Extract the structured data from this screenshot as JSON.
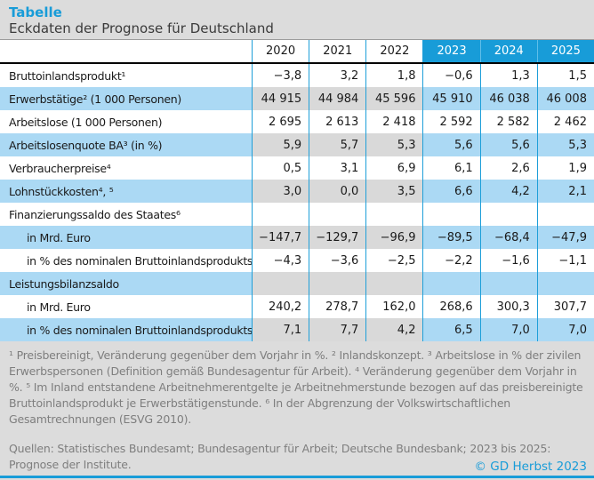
{
  "header": {
    "title": "Tabelle",
    "subtitle": "Eckdaten der Prognose für Deutschland"
  },
  "chart_data": {
    "type": "table",
    "title": "Eckdaten der Prognose für Deutschland",
    "columns": [
      "2020",
      "2021",
      "2022",
      "2023",
      "2024",
      "2025"
    ],
    "forecast_columns": [
      "2023",
      "2024",
      "2025"
    ],
    "rows": [
      {
        "label": "Bruttoinlandsprodukt¹",
        "values": [
          "−3,8",
          "3,2",
          "1,8",
          "−0,6",
          "1,3",
          "1,5"
        ]
      },
      {
        "label": "Erwerbstätige² (1 000 Personen)",
        "values": [
          "44 915",
          "44 984",
          "45 596",
          "45 910",
          "46 038",
          "46 008"
        ]
      },
      {
        "label": "Arbeitslose (1 000 Personen)",
        "values": [
          "2 695",
          "2 613",
          "2 418",
          "2 592",
          "2 582",
          "2 462"
        ]
      },
      {
        "label": "Arbeitslosenquote BA³ (in %)",
        "values": [
          "5,9",
          "5,7",
          "5,3",
          "5,6",
          "5,6",
          "5,3"
        ]
      },
      {
        "label": "Verbraucherpreise⁴",
        "values": [
          "0,5",
          "3,1",
          "6,9",
          "6,1",
          "2,6",
          "1,9"
        ]
      },
      {
        "label": "Lohnstückkosten⁴, ⁵",
        "values": [
          "3,0",
          "0,0",
          "3,5",
          "6,6",
          "4,2",
          "2,1"
        ]
      },
      {
        "label": "Finanzierungssaldo des Staates⁶",
        "values": [
          "",
          "",
          "",
          "",
          "",
          ""
        ]
      },
      {
        "label": "in Mrd. Euro",
        "values": [
          "−147,7",
          "−129,7",
          "−96,9",
          "−89,5",
          "−68,4",
          "−47,9"
        ]
      },
      {
        "label": "in % des nominalen Bruttoinlandsprodukts",
        "values": [
          "−4,3",
          "−3,6",
          "−2,5",
          "−2,2",
          "−1,6",
          "−1,1"
        ]
      },
      {
        "label": "Leistungsbilanzsaldo",
        "values": [
          "",
          "",
          "",
          "",
          "",
          ""
        ]
      },
      {
        "label": "in Mrd. Euro",
        "values": [
          "240,2",
          "278,7",
          "162,0",
          "268,6",
          "300,3",
          "307,7"
        ]
      },
      {
        "label": "in % des nominalen Bruttoinlandsprodukts",
        "values": [
          "7,1",
          "7,7",
          "4,2",
          "6,5",
          "7,0",
          "7,0"
        ]
      }
    ]
  },
  "footnotes": "¹ Preisbereinigt, Veränderung gegenüber dem Vorjahr in %. ² Inlandskonzept. ³ Arbeitslose in % der zivilen Erwerbspersonen (Definition gemäß Bundesagentur für Arbeit). ⁴ Veränderung gegenüber dem Vorjahr in %. ⁵ Im Inland entstandene Arbeitnehmerentgelte je Arbeitnehmerstunde bezogen auf das preisbereinigte Bruttoinlandsprodukt je Erwerbstätigenstunde. ⁶ In der Abgrenzung der Volkswirtschaftlichen Gesamtrechnungen (ESVG 2010).",
  "sources": "Quellen: Statistisches Bundesamt; Bundesagentur für Arbeit; Deutsche Bundesbank; 2023 bis 2025: Prognose der Institute.",
  "copyright": "© GD Herbst 2023",
  "colors": {
    "accent_blue": "#189CD8",
    "forecast_fill": "#ABD9F4",
    "history_fill": "#D9D9D9",
    "page_background": "#DCDCDC",
    "footnote_gray": "#7E7E7E"
  }
}
